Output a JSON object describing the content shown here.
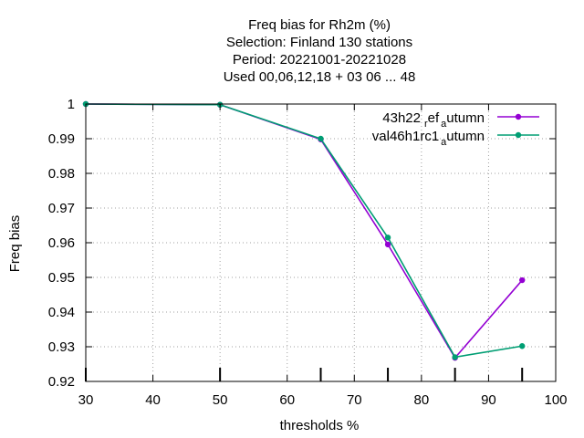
{
  "chart_data": {
    "type": "line",
    "title_lines": [
      "Freq bias  for Rh2m (%)",
      "Selection: Finland    130 stations",
      "Period: 20221001-20221028",
      "Used  00,06,12,18  + 03 06 ... 48"
    ],
    "xlabel": "thresholds %",
    "ylabel": "Freq bias",
    "xlim": [
      30,
      100
    ],
    "ylim": [
      0.92,
      1.0
    ],
    "xticks": [
      30,
      40,
      50,
      60,
      70,
      80,
      90,
      100
    ],
    "yticks": [
      0.92,
      0.93,
      0.94,
      0.95,
      0.96,
      0.97,
      0.98,
      0.99,
      1
    ],
    "ytick_labels": [
      "0.92",
      "0.93",
      "0.94",
      "0.95",
      "0.96",
      "0.97",
      "0.98",
      "0.99",
      "1"
    ],
    "marked_thresholds": [
      30,
      50,
      65,
      75,
      85,
      95
    ],
    "grid": true,
    "legend_position": "top-right",
    "series": [
      {
        "name_main": "43h22",
        "name_sub1": "r",
        "name_mid": "ef",
        "name_sub2": "a",
        "name_end": "utumn",
        "color": "#9400d3",
        "x": [
          30,
          50,
          65,
          75,
          85,
          95
        ],
        "y": [
          1.0,
          0.9998,
          0.9898,
          0.9595,
          0.9268,
          0.9492
        ]
      },
      {
        "name_main": "val46h1rc1",
        "name_sub1": "a",
        "name_end": "utumn",
        "color": "#009e73",
        "x": [
          30,
          50,
          65,
          75,
          85,
          95
        ],
        "y": [
          1.0,
          0.9998,
          0.99,
          0.9615,
          0.927,
          0.9302
        ]
      }
    ]
  }
}
